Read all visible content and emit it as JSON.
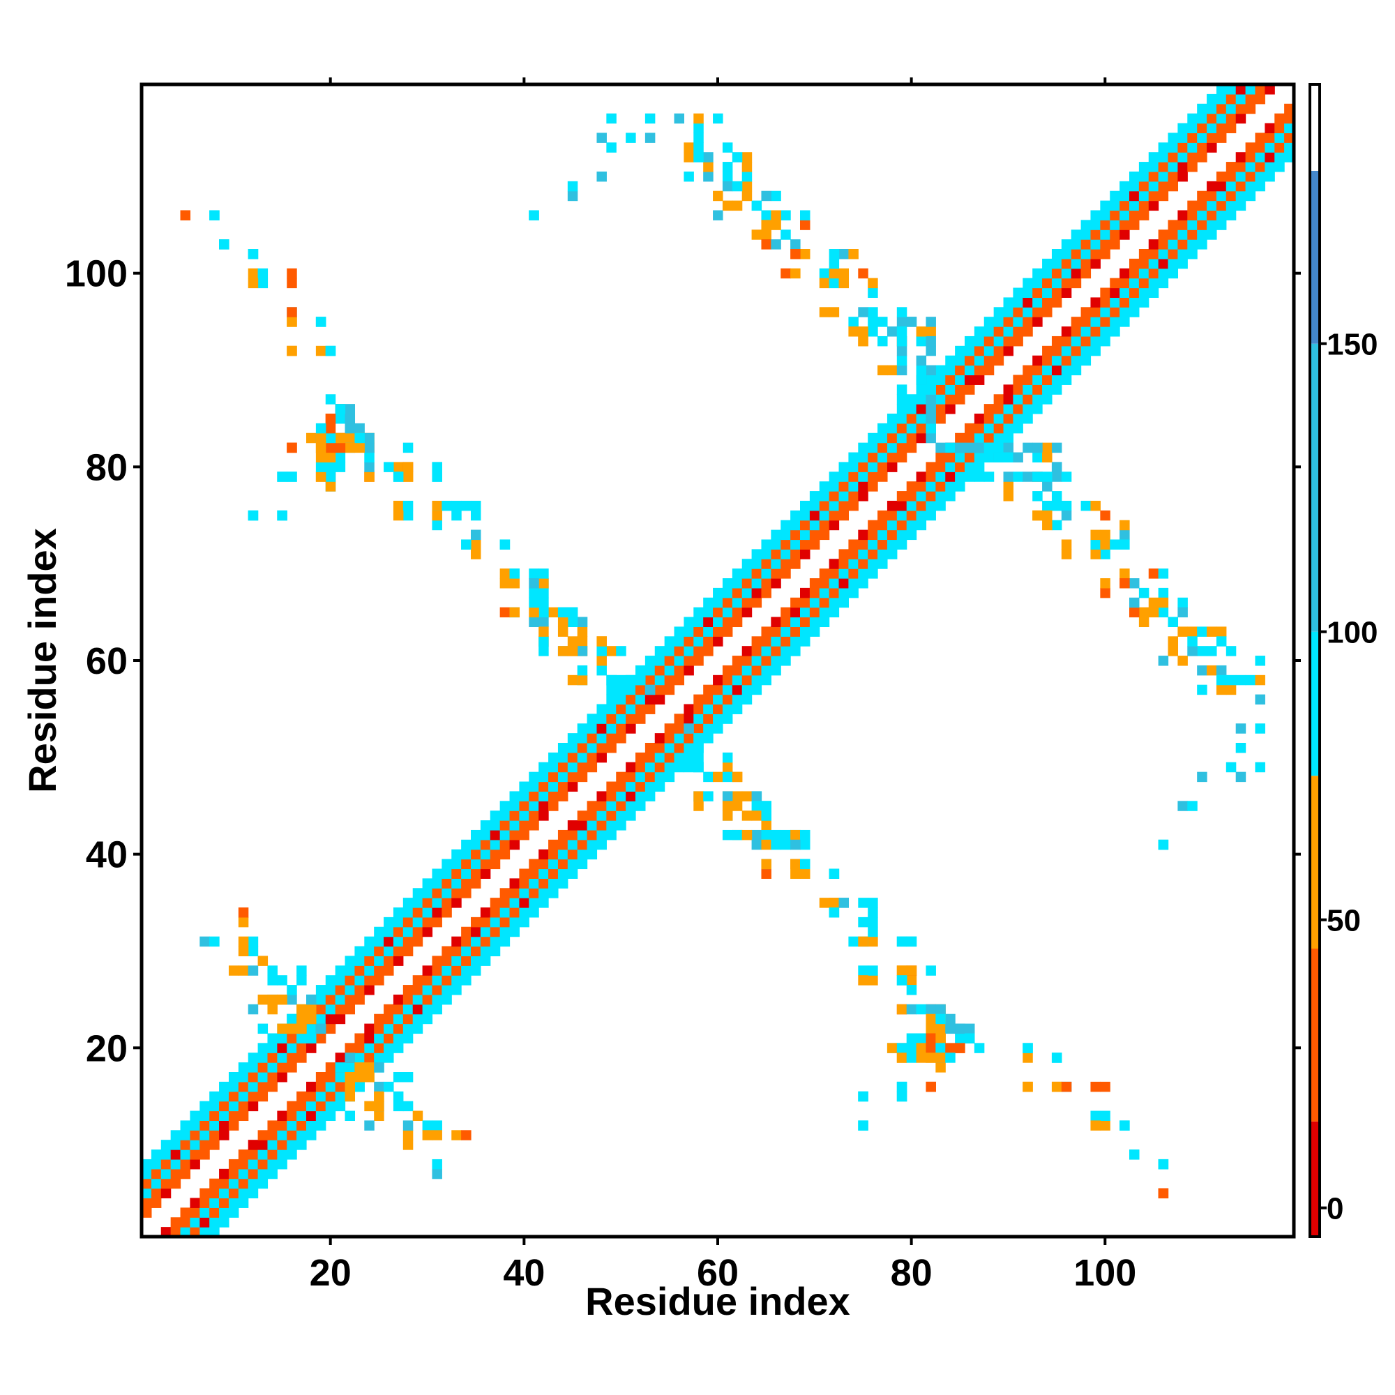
{
  "chart_data": {
    "type": "heatmap",
    "title": "",
    "xlabel": "Residue index",
    "ylabel": "Residue index",
    "xlim": [
      1,
      119
    ],
    "ylim": [
      1,
      119
    ],
    "x_ticks": [
      20,
      40,
      60,
      80,
      100
    ],
    "y_ticks": [
      20,
      40,
      60,
      80,
      100
    ],
    "grid": false,
    "colorbar": {
      "range": [
        -5,
        195
      ],
      "ticks": [
        0,
        50,
        100,
        150
      ],
      "bands": [
        {
          "from": -5,
          "to": 15,
          "color": "#e00000"
        },
        {
          "from": 15,
          "to": 45,
          "color": "#ff5a00"
        },
        {
          "from": 45,
          "to": 75,
          "color": "#ffa000"
        },
        {
          "from": 75,
          "to": 100,
          "color": "#00e6ff"
        },
        {
          "from": 100,
          "to": 150,
          "color": "#2fc0e0"
        },
        {
          "from": 150,
          "to": 180,
          "color": "#4488cc"
        },
        {
          "from": 180,
          "to": 195,
          "color": "#ffffff"
        }
      ]
    },
    "diagonal_band": {
      "offset_max": 7,
      "pattern": "checkerboard of values ~0-100 around the diagonal"
    },
    "off_diagonal_contacts": [
      [
        5,
        106,
        40
      ],
      [
        8,
        106,
        90
      ],
      [
        9,
        103,
        120
      ],
      [
        12,
        102,
        95
      ],
      [
        12,
        100,
        55
      ],
      [
        13,
        100,
        95
      ],
      [
        16,
        100,
        30
      ],
      [
        16,
        96,
        120
      ],
      [
        16,
        95,
        55
      ],
      [
        19,
        95,
        95
      ],
      [
        16,
        92,
        60
      ],
      [
        19,
        92,
        60
      ],
      [
        20,
        92,
        95
      ],
      [
        21,
        86,
        40
      ],
      [
        20,
        87,
        95
      ],
      [
        22,
        86,
        140
      ],
      [
        20,
        85,
        30
      ],
      [
        21,
        85,
        95
      ],
      [
        22,
        85,
        140
      ],
      [
        23,
        84,
        120
      ],
      [
        18,
        83,
        60
      ],
      [
        19,
        83,
        110
      ],
      [
        20,
        83,
        95
      ],
      [
        21,
        83,
        30
      ],
      [
        22,
        83,
        60
      ],
      [
        23,
        83,
        60
      ],
      [
        24,
        83,
        60
      ],
      [
        16,
        82,
        30
      ],
      [
        19,
        82,
        60
      ],
      [
        21,
        82,
        95
      ],
      [
        22,
        82,
        95
      ],
      [
        24,
        82,
        40
      ],
      [
        15,
        79,
        95
      ],
      [
        16,
        79,
        95
      ],
      [
        19,
        79,
        60
      ],
      [
        20,
        79,
        40
      ],
      [
        24,
        79,
        40
      ],
      [
        20,
        78,
        95
      ],
      [
        27,
        80,
        60
      ],
      [
        28,
        80,
        40
      ],
      [
        31,
        80,
        95
      ],
      [
        27,
        79,
        95
      ],
      [
        28,
        79,
        60
      ],
      [
        31,
        79,
        95
      ],
      [
        12,
        75,
        95
      ],
      [
        15,
        75,
        95
      ],
      [
        27,
        76,
        60
      ],
      [
        28,
        76,
        95
      ],
      [
        31,
        76,
        60
      ],
      [
        32,
        76,
        95
      ],
      [
        33,
        76,
        95
      ],
      [
        34,
        76,
        95
      ],
      [
        35,
        76,
        95
      ],
      [
        31,
        75,
        95
      ],
      [
        35,
        73,
        120
      ],
      [
        34,
        72,
        95
      ],
      [
        35,
        72,
        60
      ],
      [
        38,
        72,
        95
      ],
      [
        38,
        69,
        60
      ],
      [
        39,
        69,
        95
      ],
      [
        41,
        69,
        95
      ],
      [
        38,
        68,
        60
      ],
      [
        39,
        68,
        60
      ],
      [
        42,
        68,
        95
      ],
      [
        41,
        67,
        95
      ],
      [
        38,
        65,
        40
      ],
      [
        39,
        65,
        95
      ],
      [
        42,
        65,
        60
      ],
      [
        43,
        65,
        60
      ],
      [
        44,
        65,
        120
      ],
      [
        45,
        65,
        95
      ],
      [
        42,
        64,
        120
      ],
      [
        46,
        64,
        95
      ],
      [
        42,
        62,
        60
      ],
      [
        46,
        62,
        60
      ],
      [
        42,
        61,
        95
      ],
      [
        44,
        61,
        110
      ],
      [
        45,
        61,
        60
      ],
      [
        46,
        61,
        60
      ],
      [
        48,
        62,
        60
      ],
      [
        49,
        61,
        60
      ],
      [
        50,
        61,
        95
      ],
      [
        45,
        58,
        60
      ],
      [
        46,
        58,
        95
      ],
      [
        49,
        58,
        95
      ],
      [
        50,
        58,
        95
      ],
      [
        51,
        58,
        95
      ],
      [
        52,
        58,
        95
      ],
      [
        49,
        57,
        95
      ],
      [
        53,
        57,
        120
      ],
      [
        7,
        31,
        120
      ],
      [
        8,
        31,
        95
      ],
      [
        10,
        28,
        60
      ],
      [
        11,
        28,
        60
      ],
      [
        12,
        28,
        120
      ],
      [
        14,
        27,
        95
      ],
      [
        17,
        28,
        95
      ],
      [
        13,
        25,
        60
      ],
      [
        14,
        25,
        120
      ],
      [
        15,
        25,
        60
      ],
      [
        16,
        25,
        120
      ],
      [
        17,
        24,
        60
      ],
      [
        18,
        25,
        95
      ],
      [
        12,
        24,
        120
      ],
      [
        16,
        23,
        95
      ],
      [
        15,
        22,
        60
      ],
      [
        16,
        22,
        60
      ],
      [
        17,
        22,
        60
      ],
      [
        18,
        21,
        95
      ],
      [
        22,
        19,
        120
      ],
      [
        23,
        18,
        60
      ],
      [
        24,
        18,
        60
      ],
      [
        25,
        18,
        120
      ],
      [
        22,
        17,
        60
      ],
      [
        23,
        17,
        60
      ],
      [
        27,
        17,
        95
      ],
      [
        25,
        15,
        60
      ],
      [
        26,
        16,
        95
      ],
      [
        27,
        15,
        95
      ],
      [
        28,
        14,
        95
      ],
      [
        29,
        13,
        60
      ],
      [
        24,
        14,
        60
      ],
      [
        25,
        14,
        60
      ],
      [
        22,
        13,
        95
      ],
      [
        30,
        12,
        95
      ],
      [
        31,
        12,
        95
      ],
      [
        30,
        11,
        60
      ],
      [
        31,
        11,
        60
      ],
      [
        33,
        11,
        60
      ],
      [
        34,
        11,
        40
      ],
      [
        48,
        114,
        120
      ],
      [
        51,
        114,
        95
      ],
      [
        53,
        114,
        140
      ],
      [
        57,
        113,
        60
      ],
      [
        58,
        114,
        95
      ],
      [
        57,
        112,
        60
      ],
      [
        48,
        110,
        120
      ],
      [
        57,
        110,
        95
      ],
      [
        59,
        110,
        120
      ],
      [
        61,
        110,
        95
      ],
      [
        60,
        108,
        60
      ],
      [
        61,
        109,
        120
      ],
      [
        61,
        107,
        60
      ],
      [
        62,
        107,
        60
      ],
      [
        64,
        107,
        95
      ],
      [
        60,
        106,
        120
      ],
      [
        65,
        106,
        95
      ],
      [
        41,
        106,
        95
      ],
      [
        45,
        108,
        120
      ],
      [
        64,
        104,
        60
      ],
      [
        65,
        104,
        60
      ],
      [
        67,
        104,
        95
      ],
      [
        65,
        103,
        40
      ],
      [
        66,
        103,
        120
      ],
      [
        68,
        103,
        120
      ],
      [
        67,
        100,
        40
      ],
      [
        68,
        100,
        60
      ],
      [
        71,
        100,
        95
      ],
      [
        71,
        99,
        60
      ],
      [
        72,
        99,
        95
      ],
      [
        75,
        100,
        40
      ],
      [
        71,
        96,
        60
      ],
      [
        72,
        96,
        60
      ],
      [
        74,
        95,
        95
      ],
      [
        76,
        95,
        95
      ],
      [
        78,
        94,
        120
      ],
      [
        79,
        95,
        120
      ],
      [
        80,
        95,
        120
      ],
      [
        74,
        94,
        60
      ],
      [
        75,
        93,
        60
      ],
      [
        79,
        93,
        40
      ],
      [
        81,
        93,
        95
      ],
      [
        82,
        94,
        60
      ],
      [
        77,
        90,
        60
      ],
      [
        78,
        90,
        60
      ],
      [
        79,
        90,
        120
      ],
      [
        82,
        90,
        120
      ],
      [
        81,
        89,
        120
      ],
      [
        82,
        88,
        95
      ],
      [
        57,
        50,
        95
      ],
      [
        58,
        49,
        95
      ],
      [
        59,
        48,
        95
      ],
      [
        60,
        48,
        60
      ],
      [
        61,
        48,
        95
      ],
      [
        62,
        48,
        60
      ],
      [
        58,
        46,
        60
      ],
      [
        59,
        46,
        95
      ],
      [
        61,
        46,
        120
      ],
      [
        63,
        46,
        60
      ],
      [
        64,
        46,
        120
      ],
      [
        61,
        45,
        60
      ],
      [
        62,
        45,
        60
      ],
      [
        64,
        45,
        95
      ],
      [
        65,
        45,
        95
      ],
      [
        61,
        44,
        60
      ],
      [
        63,
        44,
        60
      ],
      [
        64,
        44,
        60
      ],
      [
        65,
        44,
        95
      ],
      [
        62,
        42,
        95
      ],
      [
        63,
        42,
        60
      ],
      [
        65,
        42,
        95
      ],
      [
        66,
        42,
        95
      ],
      [
        67,
        42,
        95
      ],
      [
        68,
        42,
        60
      ],
      [
        69,
        42,
        95
      ],
      [
        64,
        41,
        120
      ],
      [
        65,
        41,
        60
      ],
      [
        66,
        41,
        95
      ],
      [
        68,
        41,
        120
      ],
      [
        65,
        39,
        60
      ],
      [
        68,
        39,
        60
      ],
      [
        69,
        39,
        95
      ],
      [
        72,
        38,
        95
      ],
      [
        71,
        35,
        60
      ],
      [
        72,
        35,
        60
      ],
      [
        73,
        35,
        120
      ],
      [
        75,
        35,
        95
      ],
      [
        72,
        34,
        95
      ],
      [
        75,
        33,
        95
      ],
      [
        74,
        31,
        95
      ],
      [
        75,
        31,
        60
      ],
      [
        79,
        31,
        95
      ],
      [
        80,
        31,
        95
      ],
      [
        75,
        28,
        95
      ],
      [
        79,
        28,
        60
      ],
      [
        80,
        28,
        60
      ],
      [
        82,
        28,
        95
      ],
      [
        75,
        27,
        60
      ],
      [
        79,
        27,
        95
      ],
      [
        80,
        26,
        95
      ],
      [
        79,
        24,
        60
      ],
      [
        80,
        24,
        120
      ],
      [
        81,
        24,
        95
      ],
      [
        82,
        24,
        140
      ],
      [
        83,
        24,
        120
      ],
      [
        82,
        23,
        60
      ],
      [
        83,
        23,
        95
      ],
      [
        82,
        22,
        60
      ],
      [
        84,
        22,
        120
      ],
      [
        85,
        22,
        140
      ],
      [
        80,
        21,
        95
      ],
      [
        81,
        21,
        95
      ],
      [
        82,
        21,
        30
      ],
      [
        83,
        21,
        60
      ],
      [
        86,
        21,
        95
      ],
      [
        78,
        20,
        60
      ],
      [
        79,
        20,
        95
      ],
      [
        80,
        20,
        95
      ],
      [
        81,
        20,
        60
      ],
      [
        82,
        20,
        40
      ],
      [
        83,
        20,
        95
      ],
      [
        84,
        20,
        40
      ],
      [
        85,
        20,
        40
      ],
      [
        79,
        19,
        60
      ],
      [
        80,
        19,
        95
      ],
      [
        81,
        19,
        60
      ],
      [
        82,
        19,
        60
      ],
      [
        83,
        19,
        60
      ],
      [
        84,
        19,
        95
      ],
      [
        79,
        16,
        95
      ],
      [
        82,
        16,
        40
      ],
      [
        79,
        15,
        95
      ],
      [
        75,
        15,
        95
      ],
      [
        75,
        12,
        95
      ],
      [
        92,
        20,
        95
      ],
      [
        95,
        19,
        95
      ],
      [
        92,
        16,
        60
      ],
      [
        95,
        16,
        60
      ],
      [
        96,
        16,
        40
      ],
      [
        99,
        16,
        40
      ],
      [
        99,
        13,
        95
      ],
      [
        102,
        12,
        95
      ],
      [
        99,
        12,
        60
      ],
      [
        103,
        9,
        95
      ],
      [
        106,
        8,
        95
      ],
      [
        106,
        5,
        40
      ],
      [
        83,
        82,
        120
      ],
      [
        84,
        82,
        95
      ],
      [
        85,
        82,
        120
      ],
      [
        86,
        82,
        120
      ],
      [
        87,
        82,
        120
      ],
      [
        88,
        82,
        95
      ],
      [
        89,
        81,
        95
      ],
      [
        90,
        81,
        95
      ],
      [
        91,
        81,
        120
      ],
      [
        92,
        82,
        120
      ],
      [
        93,
        82,
        120
      ],
      [
        94,
        81,
        60
      ],
      [
        95,
        82,
        120
      ],
      [
        87,
        79,
        95
      ],
      [
        88,
        79,
        95
      ],
      [
        91,
        79,
        95
      ],
      [
        92,
        79,
        120
      ],
      [
        93,
        79,
        95
      ],
      [
        94,
        79,
        95
      ],
      [
        95,
        80,
        120
      ],
      [
        96,
        79,
        95
      ],
      [
        93,
        77,
        95
      ],
      [
        95,
        77,
        95
      ],
      [
        94,
        76,
        95
      ],
      [
        96,
        76,
        95
      ],
      [
        98,
        76,
        95
      ],
      [
        99,
        76,
        60
      ],
      [
        93,
        75,
        60
      ],
      [
        94,
        75,
        60
      ],
      [
        96,
        75,
        120
      ],
      [
        99,
        73,
        60
      ],
      [
        100,
        73,
        60
      ],
      [
        102,
        73,
        120
      ],
      [
        100,
        72,
        60
      ],
      [
        101,
        72,
        95
      ],
      [
        102,
        72,
        95
      ],
      [
        102,
        74,
        60
      ],
      [
        102,
        69,
        60
      ],
      [
        105,
        69,
        40
      ],
      [
        106,
        69,
        95
      ],
      [
        102,
        68,
        40
      ],
      [
        106,
        67,
        95
      ],
      [
        105,
        66,
        60
      ],
      [
        106,
        66,
        60
      ],
      [
        108,
        66,
        95
      ],
      [
        105,
        65,
        60
      ],
      [
        108,
        65,
        120
      ],
      [
        108,
        63,
        60
      ],
      [
        109,
        63,
        60
      ],
      [
        110,
        63,
        95
      ],
      [
        111,
        63,
        60
      ],
      [
        112,
        63,
        60
      ],
      [
        109,
        62,
        95
      ],
      [
        112,
        62,
        95
      ],
      [
        111,
        61,
        95
      ],
      [
        113,
        61,
        95
      ],
      [
        111,
        59,
        60
      ],
      [
        112,
        59,
        120
      ],
      [
        116,
        60,
        95
      ],
      [
        112,
        58,
        95
      ],
      [
        113,
        58,
        95
      ],
      [
        115,
        58,
        95
      ],
      [
        116,
        58,
        60
      ],
      [
        116,
        56,
        140
      ],
      [
        116,
        53,
        95
      ],
      [
        113,
        49,
        95
      ],
      [
        116,
        49,
        95
      ],
      [
        109,
        45,
        95
      ],
      [
        106,
        41,
        95
      ]
    ]
  }
}
